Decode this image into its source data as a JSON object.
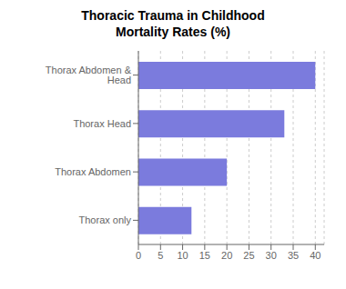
{
  "chart_data": {
    "type": "bar",
    "orientation": "horizontal",
    "title": "Thoracic Trauma in Childhood\nMortality Rates (%)",
    "categories": [
      "Thorax only",
      "Thorax Abdomen",
      "Thorax Head",
      "Thorax Abdomen & Head"
    ],
    "values": [
      12,
      20,
      33,
      40
    ],
    "color": "#7b7bdd",
    "xlim": [
      0,
      42
    ],
    "xticks": [
      0,
      5,
      10,
      15,
      20,
      25,
      30,
      35,
      40
    ],
    "grid": true
  }
}
